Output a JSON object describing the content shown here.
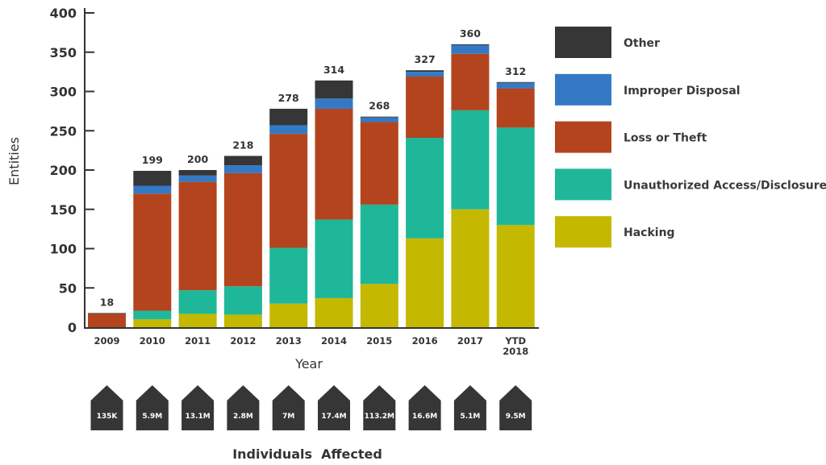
{
  "chart_data": {
    "type": "bar",
    "stacked": true,
    "title": "",
    "xlabel": "Year",
    "ylabel": "Entities",
    "ylim": [
      0,
      400
    ],
    "yticks": [
      0,
      50,
      100,
      150,
      200,
      250,
      300,
      350,
      400
    ],
    "grid": false,
    "legend_position": "right",
    "categories": [
      "2009",
      "2010",
      "2011",
      "2012",
      "2013",
      "2014",
      "2015",
      "2016",
      "2017",
      "YTD 2018"
    ],
    "category_lines": [
      [
        "2009"
      ],
      [
        "2010"
      ],
      [
        "2011"
      ],
      [
        "2012"
      ],
      [
        "2013"
      ],
      [
        "2014"
      ],
      [
        "2015"
      ],
      [
        "2016"
      ],
      [
        "2017"
      ],
      [
        "YTD",
        "2018"
      ]
    ],
    "totals": [
      18,
      199,
      200,
      218,
      278,
      314,
      268,
      327,
      360,
      312
    ],
    "series": [
      {
        "name": "Hacking",
        "color": "#c4b800",
        "values": [
          0,
          10,
          17,
          16,
          30,
          37,
          55,
          113,
          150,
          130
        ]
      },
      {
        "name": "Unauthorized Access/Disclosure",
        "color": "#1fb799",
        "values": [
          0,
          11,
          30,
          36,
          71,
          100,
          101,
          128,
          126,
          124
        ]
      },
      {
        "name": "Loss or Theft",
        "color": "#b3441e",
        "values": [
          17,
          149,
          138,
          144,
          145,
          141,
          105,
          78,
          72,
          50
        ]
      },
      {
        "name": "Improper Disposal",
        "color": "#3479c4",
        "values": [
          0,
          10,
          8,
          10,
          11,
          13,
          6,
          6,
          11,
          7
        ]
      },
      {
        "name": "Other",
        "color": "#363636",
        "values": [
          1,
          19,
          7,
          12,
          21,
          23,
          1,
          2,
          1,
          1
        ]
      }
    ],
    "legend_order": [
      "Other",
      "Improper Disposal",
      "Loss or Theft",
      "Unauthorized Access/Disclosure",
      "Hacking"
    ],
    "individuals_affected": {
      "title": "Individuals  Affected",
      "values": [
        "135K",
        "5.9M",
        "13.1M",
        "2.8M",
        "7M",
        "17.4M",
        "113.2M",
        "16.6M",
        "5.1M",
        "9.5M"
      ],
      "color": "#363636"
    }
  }
}
